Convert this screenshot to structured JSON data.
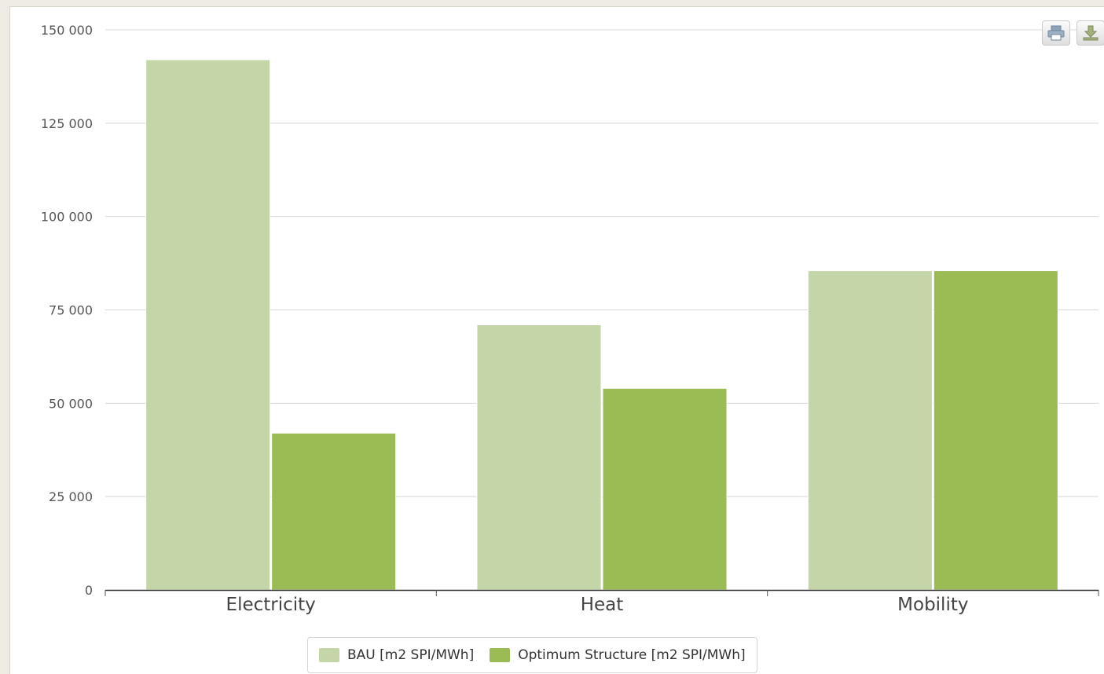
{
  "chart_data": {
    "type": "bar",
    "categories": [
      "Electricity",
      "Heat",
      "Mobility"
    ],
    "series": [
      {
        "name": "BAU [m2 SPI/MWh]",
        "values": [
          142000,
          71000,
          85500
        ],
        "color": "#c4d6a8"
      },
      {
        "name": "Optimum Structure [m2 SPI/MWh]",
        "values": [
          42000,
          54000,
          85500
        ],
        "color": "#9bbb55"
      }
    ],
    "ylim": [
      0,
      150000
    ],
    "yticks": [
      0,
      25000,
      50000,
      75000,
      100000,
      125000,
      150000
    ],
    "ytick_labels": [
      "0",
      "25 000",
      "50 000",
      "75 000",
      "100 000",
      "125 000",
      "150 000"
    ],
    "grid": true,
    "legend_position": "bottom-center"
  },
  "toolbar": {
    "print_icon": "printer-icon",
    "download_icon": "download-icon"
  }
}
